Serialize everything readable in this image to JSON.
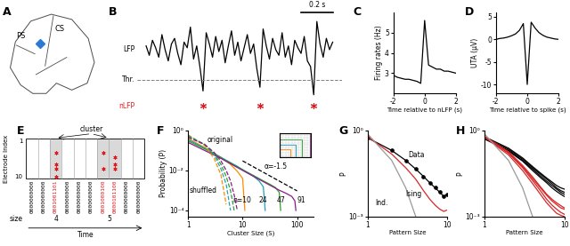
{
  "chart_data": [
    {
      "type": "schematic",
      "title": "A",
      "labels": [
        "PS",
        "CS"
      ],
      "color": "#2b7bd6"
    },
    {
      "type": "line",
      "title": "B",
      "tick_labels": false,
      "x": [
        0,
        0.02,
        0.04,
        0.06,
        0.08,
        0.1,
        0.12,
        0.14,
        0.16,
        0.18,
        0.2,
        0.22,
        0.24,
        0.26,
        0.28,
        0.3,
        0.32,
        0.34,
        0.36,
        0.38,
        0.4,
        0.42,
        0.44,
        0.46,
        0.48,
        0.5,
        0.52,
        0.54,
        0.56,
        0.58,
        0.6,
        0.62,
        0.64,
        0.66,
        0.68,
        0.7,
        0.72,
        0.74,
        0.76,
        0.78,
        0.8,
        0.82,
        0.84,
        0.86,
        0.88,
        0.9,
        0.92,
        0.94,
        0.96,
        0.98,
        1.0,
        1.02,
        1.04,
        1.06,
        1.08,
        1.1,
        1.12,
        1.14,
        1.16,
        1.18
      ],
      "series": [
        {
          "color": "#000000",
          "values": [
            0.2,
            -0.3,
            0.5,
            0.1,
            -0.4,
            0.8,
            0.0,
            -0.6,
            0.3,
            0.6,
            -0.2,
            -0.8,
            0.4,
            0.1,
            1.2,
            -0.5,
            0.2,
            -0.9,
            -2.2,
            0.9,
            0.3,
            -0.4,
            0.7,
            -0.1,
            0.5,
            -0.7,
            0.2,
            1.0,
            -0.3,
            0.4,
            -0.6,
            0.1,
            0.8,
            -0.2,
            0.3,
            -1.0,
            -2.0,
            1.1,
            0.2,
            -0.5,
            0.6,
            0.0,
            -0.3,
            0.9,
            -0.4,
            0.2,
            -0.8,
            0.5,
            0.1,
            -0.2,
            0.7,
            -0.6,
            -0.9,
            -2.4,
            1.5,
            0.3,
            -0.4,
            0.6,
            0.0,
            0.4
          ]
        },
        {
          "type": "scatter",
          "color": "#e41a1c",
          "marker": "asterisk",
          "x": [
            0.36,
            0.72,
            1.06
          ],
          "values": [
            -3.0,
            -3.0,
            -3.0
          ]
        }
      ],
      "threshold": -1.6,
      "scale_bar": 0.2,
      "scale_bar_label": "0.2 s",
      "annotations": [
        {
          "text": "LFP",
          "y": 0
        },
        {
          "text": "Thr.",
          "y": -1.6
        },
        {
          "text": "nLFP",
          "y": -3.0,
          "color": "#e41a1c"
        }
      ]
    },
    {
      "type": "line",
      "title": "C",
      "xlabel": "Time relative to nLFP (s)",
      "ylabel": "Firing rates (Hz)",
      "x": [
        -2,
        -1.75,
        -1.5,
        -1.25,
        -1,
        -0.75,
        -0.5,
        -0.25,
        0,
        0.25,
        0.5,
        0.75,
        1,
        1.25,
        1.5,
        1.75,
        2
      ],
      "series": [
        {
          "color": "#000000",
          "values": [
            2.9,
            2.8,
            2.75,
            2.7,
            2.7,
            2.65,
            2.6,
            2.5,
            5.6,
            3.4,
            3.3,
            3.2,
            3.2,
            3.1,
            3.1,
            3.05,
            3.0
          ]
        }
      ],
      "xlim": [
        -2,
        2
      ],
      "xticks": [
        -2,
        0,
        2
      ],
      "ylim": [
        2,
        6
      ],
      "yticks": [
        3,
        4,
        5
      ]
    },
    {
      "type": "line",
      "title": "D",
      "xlabel": "Time relative to spike (s)",
      "ylabel": "UTA (μV)",
      "x": [
        -2,
        -1.75,
        -1.5,
        -1.25,
        -1,
        -0.75,
        -0.5,
        -0.25,
        0,
        0.25,
        0.5,
        0.75,
        1,
        1.25,
        1.5,
        1.75,
        2
      ],
      "series": [
        {
          "color": "#000000",
          "values": [
            0.0,
            0.2,
            0.3,
            0.5,
            0.8,
            1.2,
            2.0,
            3.5,
            -10.0,
            3.8,
            2.5,
            1.5,
            0.9,
            0.5,
            0.3,
            0.1,
            0.0
          ]
        }
      ],
      "xlim": [
        -2,
        2
      ],
      "xticks": [
        -2,
        0,
        2
      ],
      "ylim": [
        -12,
        6
      ],
      "yticks": [
        -10,
        -5,
        0,
        5
      ]
    },
    {
      "type": "raster",
      "title": "E",
      "ylabel": "Electrode Index",
      "xlabel": "Time",
      "annotation": "cluster",
      "size_label": "size",
      "color": "#e41a1c",
      "electrode_ticks": [
        1,
        10
      ],
      "frames": [
        "0000000000",
        "0000000000",
        "0001001101",
        "0000000000",
        "0000000000",
        "0000000000",
        "0001000100",
        "0000101100",
        "0000000000",
        "0000000000"
      ],
      "clusters": [
        [
          2
        ],
        [
          6,
          7
        ]
      ],
      "sizes": [
        4,
        5
      ]
    },
    {
      "type": "line",
      "title": "F",
      "xlabel": "Cluster Size (S)",
      "ylabel": "Probability (P)",
      "log": true,
      "series": [
        {
          "color": "#ff8c00",
          "x": [
            1,
            2,
            4,
            6,
            8,
            10,
            11
          ],
          "values": [
            0.4,
            0.14,
            0.045,
            0.02,
            0.009,
            0.004,
            0.0001
          ]
        },
        {
          "color": "#1fa3b5",
          "x": [
            1,
            2,
            4,
            8,
            12,
            16,
            20,
            24,
            26
          ],
          "values": [
            0.35,
            0.13,
            0.045,
            0.016,
            0.008,
            0.005,
            0.003,
            0.0015,
            0.0001
          ]
        },
        {
          "color": "#2ca02c",
          "x": [
            1,
            2,
            4,
            8,
            16,
            24,
            32,
            40,
            47,
            50
          ],
          "values": [
            0.3,
            0.12,
            0.043,
            0.015,
            0.0055,
            0.003,
            0.002,
            0.0014,
            0.0008,
            0.0001
          ]
        },
        {
          "color": "#8b1a8b",
          "x": [
            1,
            2,
            4,
            8,
            16,
            32,
            48,
            64,
            80,
            91,
            95
          ],
          "values": [
            0.25,
            0.1,
            0.04,
            0.014,
            0.005,
            0.0018,
            0.001,
            0.0007,
            0.0005,
            0.0003,
            0.0001
          ]
        },
        {
          "color": "#ff8c00",
          "line_style": "dashed",
          "x": [
            1,
            2,
            3,
            4,
            5
          ],
          "values": [
            0.6,
            0.18,
            0.04,
            0.006,
            0.0002
          ]
        },
        {
          "color": "#1fa3b5",
          "line_style": "dashed",
          "x": [
            1,
            2,
            3,
            4,
            5,
            6
          ],
          "values": [
            0.55,
            0.2,
            0.06,
            0.012,
            0.002,
            0.0001
          ]
        },
        {
          "color": "#2ca02c",
          "line_style": "dashed",
          "x": [
            1,
            2,
            3,
            4,
            5,
            6,
            7
          ],
          "values": [
            0.5,
            0.2,
            0.07,
            0.02,
            0.005,
            0.001,
            0.0001
          ]
        },
        {
          "color": "#8b1a8b",
          "line_style": "dashed",
          "x": [
            1,
            2,
            3,
            4,
            5,
            6,
            7,
            8
          ],
          "values": [
            0.45,
            0.2,
            0.08,
            0.03,
            0.01,
            0.003,
            0.0006,
            0.0001
          ]
        },
        {
          "color": "#000000",
          "line_style": "dashed",
          "x": [
            10,
            100
          ],
          "values": [
            0.03,
            0.00095
          ]
        }
      ],
      "annotations": [
        {
          "text": "original",
          "x": 2.2,
          "y": 0.25
        },
        {
          "text": "shuffled",
          "x": 1.05,
          "y": 0.0008
        },
        {
          "text": "α=-1.5",
          "x": 25,
          "y": 0.012
        },
        {
          "text": "n=10",
          "x": 6.5,
          "y": 0.00025
        },
        {
          "text": "24",
          "x": 20,
          "y": 0.00025
        },
        {
          "text": "47",
          "x": 42,
          "y": 0.00025
        },
        {
          "text": "91",
          "x": 100,
          "y": 0.00025
        }
      ],
      "xlim": [
        1,
        200
      ],
      "xticks": [
        1,
        10,
        100
      ],
      "ylim": [
        5e-05,
        1
      ],
      "yticks": [
        {
          "value": 0.0001,
          "label": "10⁻⁴"
        },
        {
          "value": 0.01,
          "label": "10⁻²"
        },
        {
          "value": 1,
          "label": "10⁰"
        }
      ]
    },
    {
      "type": "line",
      "title": "G",
      "xlabel": "Pattern Size",
      "ylabel": "P",
      "log": true,
      "series": [
        {
          "color": "#000000",
          "marker": "circle",
          "x": [
            1,
            2,
            3,
            4,
            5,
            6,
            7,
            8,
            9,
            10
          ],
          "values": [
            0.55,
            0.2,
            0.09,
            0.045,
            0.025,
            0.015,
            0.01,
            0.007,
            0.005,
            0.006
          ]
        },
        {
          "color": "#d62728",
          "x": [
            1,
            2,
            3,
            4,
            5,
            6,
            7,
            8,
            9,
            10
          ],
          "values": [
            0.6,
            0.15,
            0.05,
            0.02,
            0.008,
            0.004,
            0.0025,
            0.0018,
            0.0015,
            0.0017
          ]
        },
        {
          "color": "#999999",
          "x": [
            1,
            2,
            3,
            4
          ],
          "values": [
            0.75,
            0.09,
            0.01,
            0.001
          ]
        }
      ],
      "annotations": [
        {
          "text": "Data",
          "x": 3.2,
          "y": 0.12
        },
        {
          "text": "Ising",
          "x": 3.0,
          "y": 0.005
        },
        {
          "text": "Ind.",
          "x": 1.25,
          "y": 0.0025
        }
      ],
      "xlim": [
        1,
        10
      ],
      "xticks": [
        1,
        10
      ],
      "ylim": [
        0.001,
        1
      ],
      "yticks": [
        {
          "value": 0.001,
          "label": "10⁻³"
        },
        {
          "value": 1,
          "label": "10⁰"
        }
      ]
    },
    {
      "type": "line",
      "title": "H",
      "xlabel": "Pattern Size",
      "ylabel": "P",
      "log": true,
      "series": [
        {
          "color": "#000000",
          "x": [
            1,
            2,
            3,
            4,
            5,
            6,
            7,
            8,
            9,
            10
          ],
          "values": [
            0.55,
            0.22,
            0.1,
            0.05,
            0.03,
            0.02,
            0.014,
            0.01,
            0.008,
            0.007
          ]
        },
        {
          "color": "#000000",
          "x": [
            1,
            2,
            3,
            4,
            5,
            6,
            7,
            8,
            9,
            10
          ],
          "values": [
            0.5,
            0.2,
            0.09,
            0.045,
            0.026,
            0.017,
            0.012,
            0.009,
            0.007,
            0.006
          ]
        },
        {
          "color": "#000000",
          "x": [
            1,
            2,
            3,
            4,
            5,
            6,
            7,
            8,
            9,
            10
          ],
          "values": [
            0.6,
            0.24,
            0.11,
            0.055,
            0.033,
            0.022,
            0.016,
            0.012,
            0.01,
            0.009
          ]
        },
        {
          "color": "#000000",
          "x": [
            1,
            2,
            3,
            4,
            5,
            6,
            7,
            8,
            9,
            10
          ],
          "values": [
            0.52,
            0.19,
            0.085,
            0.04,
            0.023,
            0.015,
            0.01,
            0.0075,
            0.006,
            0.005
          ]
        },
        {
          "color": "#d62728",
          "x": [
            1,
            2,
            3,
            4,
            5,
            6,
            7,
            8,
            9,
            10
          ],
          "values": [
            0.6,
            0.16,
            0.05,
            0.018,
            0.008,
            0.004,
            0.0025,
            0.0018,
            0.0014,
            0.0012
          ]
        },
        {
          "color": "#d62728",
          "x": [
            1,
            2,
            3,
            4,
            5,
            6,
            7,
            8,
            9,
            10
          ],
          "values": [
            0.62,
            0.18,
            0.06,
            0.024,
            0.011,
            0.006,
            0.004,
            0.003,
            0.0024,
            0.002
          ]
        },
        {
          "color": "#d62728",
          "x": [
            1,
            2,
            3,
            4,
            5,
            6,
            7,
            8,
            9,
            10
          ],
          "values": [
            0.58,
            0.14,
            0.04,
            0.014,
            0.006,
            0.003,
            0.0019,
            0.0013,
            0.0011,
            0.001
          ]
        },
        {
          "color": "#d62728",
          "x": [
            1,
            2,
            3,
            4,
            5,
            6,
            7,
            8,
            9,
            10
          ],
          "values": [
            0.6,
            0.17,
            0.055,
            0.021,
            0.01,
            0.0055,
            0.0035,
            0.0026,
            0.002,
            0.0018
          ]
        },
        {
          "color": "#999999",
          "x": [
            1,
            2,
            3,
            4
          ],
          "values": [
            0.75,
            0.09,
            0.01,
            0.001
          ]
        }
      ],
      "xlim": [
        1,
        10
      ],
      "xticks": [
        1,
        10
      ],
      "ylim": [
        0.001,
        1
      ],
      "yticks": [
        {
          "value": 0.001,
          "label": "10⁻³"
        },
        {
          "value": 1,
          "label": "10⁰"
        }
      ]
    }
  ]
}
